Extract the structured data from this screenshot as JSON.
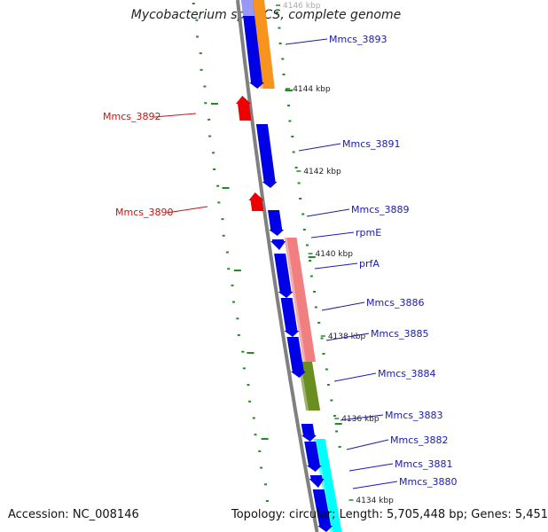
{
  "title": "Mycobacterium sp. MCS, complete genome",
  "footer": {
    "accession": "Accession: NC_008146",
    "summary": "Topology: circular; Length: 5,705,448 bp; Genes: 5,451"
  },
  "colors": {
    "backbone": "#808080",
    "cds": "#0000e6",
    "reverse_cds": "#ee0000",
    "forward_label": "#1a1ab3",
    "reverse_label": "#cc1111",
    "gc_skew": "#228B22",
    "tick_text": "#222222"
  },
  "ticks": [
    {
      "label": "4146 kbp"
    },
    {
      "label": "4144 kbp"
    },
    {
      "label": "4142 kbp"
    },
    {
      "label": "4140 kbp"
    },
    {
      "label": "4138 kbp"
    },
    {
      "label": "4136 kbp"
    },
    {
      "label": "4134 kbp"
    }
  ],
  "forward_genes": [
    {
      "label": "Mmcs_3893"
    },
    {
      "label": "Mmcs_3891"
    },
    {
      "label": "Mmcs_3889"
    },
    {
      "label": "rpmE"
    },
    {
      "label": "prfA"
    },
    {
      "label": "Mmcs_3886"
    },
    {
      "label": "Mmcs_3885"
    },
    {
      "label": "Mmcs_3884"
    },
    {
      "label": "Mmcs_3883"
    },
    {
      "label": "Mmcs_3882"
    },
    {
      "label": "Mmcs_3881"
    },
    {
      "label": "Mmcs_3880"
    }
  ],
  "reverse_genes": [
    {
      "label": "Mmcs_3892"
    },
    {
      "label": "Mmcs_3890"
    }
  ],
  "cog_bars": [
    {
      "color": "#f7941d"
    },
    {
      "color": "#f08080"
    },
    {
      "color": "#6b8e23"
    },
    {
      "color": "#00ffff"
    }
  ]
}
